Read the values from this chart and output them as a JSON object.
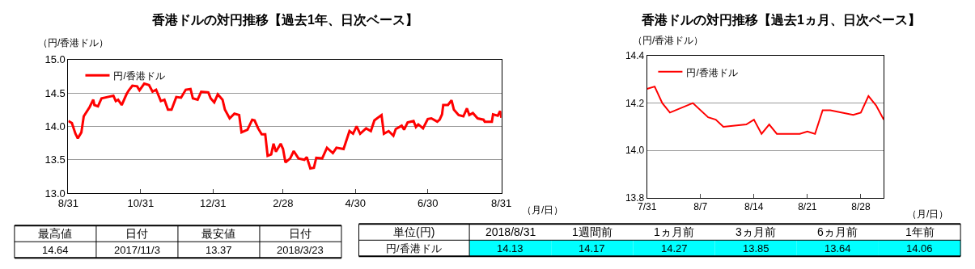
{
  "chart_data": [
    {
      "type": "line",
      "title": "香港ドルの対円推移【過去1年、日次ベース】",
      "ylabel": "（円/香港ドル）",
      "xlabel": "（月/日）",
      "legend": "top left",
      "grid": "y",
      "line_style": "solid",
      "xlim": [
        "2017-08-31",
        "2018-08-31"
      ],
      "xticks": [
        {
          "value": "2017-08-31",
          "label": "8/31"
        },
        {
          "value": "2017-10-31",
          "label": "10/31"
        },
        {
          "value": "2017-12-31",
          "label": "12/31"
        },
        {
          "value": "2018-02-28",
          "label": "2/28"
        },
        {
          "value": "2018-04-30",
          "label": "4/30"
        },
        {
          "value": "2018-06-30",
          "label": "6/30"
        },
        {
          "value": "2018-08-31",
          "label": "8/31"
        }
      ],
      "ylim": [
        13,
        15
      ],
      "yticks": [
        {
          "value": 13,
          "label": "13.0"
        },
        13.5,
        {
          "value": 14,
          "label": "14.0"
        },
        14.5,
        {
          "value": 15,
          "label": "15.0"
        }
      ],
      "x": [
        "2017-08-31",
        "2017-09-03",
        "2017-09-06",
        "2017-09-08",
        "2017-09-11",
        "2017-09-13",
        "2017-09-18",
        "2017-09-21",
        "2017-09-22",
        "2017-09-25",
        "2017-09-28",
        "2017-10-03",
        "2017-10-08",
        "2017-10-10",
        "2017-10-12",
        "2017-10-15",
        "2017-10-19",
        "2017-10-21",
        "2017-10-24",
        "2017-10-28",
        "2017-10-30",
        "2017-11-03",
        "2017-11-07",
        "2017-11-10",
        "2017-11-13",
        "2017-11-17",
        "2017-11-20",
        "2017-11-23",
        "2017-11-26",
        "2017-11-30",
        "2017-12-04",
        "2017-12-08",
        "2017-12-12",
        "2017-12-14",
        "2017-12-18",
        "2017-12-21",
        "2017-12-27",
        "2017-12-29",
        "2018-01-01",
        "2018-01-04",
        "2018-01-08",
        "2018-01-10",
        "2018-01-14",
        "2018-01-18",
        "2018-01-22",
        "2018-01-24",
        "2018-01-29",
        "2018-02-02",
        "2018-02-04",
        "2018-02-07",
        "2018-02-10",
        "2018-02-13",
        "2018-02-15",
        "2018-02-18",
        "2018-02-20",
        "2018-02-22",
        "2018-02-26",
        "2018-02-28",
        "2018-03-02",
        "2018-03-06",
        "2018-03-09",
        "2018-03-13",
        "2018-03-18",
        "2018-03-20",
        "2018-03-23",
        "2018-03-26",
        "2018-03-28",
        "2018-04-02",
        "2018-04-06",
        "2018-04-11",
        "2018-04-14",
        "2018-04-20",
        "2018-04-25",
        "2018-04-28",
        "2018-05-01",
        "2018-05-04",
        "2018-05-09",
        "2018-05-13",
        "2018-05-16",
        "2018-05-22",
        "2018-05-24",
        "2018-05-28",
        "2018-06-01",
        "2018-06-03",
        "2018-06-08",
        "2018-06-10",
        "2018-06-13",
        "2018-06-18",
        "2018-06-20",
        "2018-06-22",
        "2018-06-26",
        "2018-06-30",
        "2018-07-03",
        "2018-07-08",
        "2018-07-10",
        "2018-07-12",
        "2018-07-13",
        "2018-07-17",
        "2018-07-20",
        "2018-07-22",
        "2018-07-26",
        "2018-07-30",
        "2018-08-02",
        "2018-08-04",
        "2018-08-07",
        "2018-08-11",
        "2018-08-16",
        "2018-08-17",
        "2018-08-23",
        "2018-08-24",
        "2018-08-28",
        "2018-08-30",
        "2018-08-31"
      ],
      "series": [
        {
          "name": "円/香港ドル",
          "color": "#ff0000",
          "values": [
            14.08,
            14.05,
            13.89,
            13.82,
            13.91,
            14.15,
            14.29,
            14.4,
            14.32,
            14.3,
            14.42,
            14.44,
            14.46,
            14.38,
            14.4,
            14.32,
            14.48,
            14.54,
            14.61,
            14.6,
            14.54,
            14.64,
            14.62,
            14.52,
            14.55,
            14.38,
            14.4,
            14.25,
            14.25,
            14.44,
            14.43,
            14.55,
            14.56,
            14.42,
            14.4,
            14.52,
            14.51,
            14.42,
            14.36,
            14.48,
            14.4,
            14.25,
            14.12,
            14.19,
            14.17,
            13.91,
            13.95,
            14.1,
            14.09,
            13.97,
            13.88,
            13.88,
            13.56,
            13.58,
            13.74,
            13.62,
            13.74,
            13.66,
            13.46,
            13.52,
            13.63,
            13.52,
            13.5,
            13.54,
            13.37,
            13.38,
            13.53,
            13.52,
            13.68,
            13.6,
            13.68,
            13.66,
            13.93,
            13.89,
            14.0,
            13.89,
            13.97,
            13.93,
            14.09,
            14.17,
            13.89,
            13.93,
            13.86,
            13.96,
            14.01,
            13.95,
            14.06,
            14.08,
            13.99,
            14.03,
            13.97,
            14.11,
            14.12,
            14.07,
            14.1,
            14.18,
            14.32,
            14.32,
            14.39,
            14.25,
            14.17,
            14.15,
            14.27,
            14.17,
            14.2,
            14.12,
            14.1,
            14.07,
            14.07,
            14.18,
            14.16,
            14.23,
            14.13
          ]
        }
      ]
    },
    {
      "type": "line",
      "title": "香港ドルの対円推移【過去1ヵ月、日次ベース】",
      "ylabel": "（円/香港ドル）",
      "xlabel": "（月/日）",
      "legend": "top left",
      "grid": "y",
      "line_style": "solid",
      "xlim": [
        "2018-07-31",
        "2018-08-31"
      ],
      "xticks": [
        {
          "value": "2018-07-31",
          "label": "7/31"
        },
        {
          "value": "2018-08-07",
          "label": "8/7"
        },
        {
          "value": "2018-08-14",
          "label": "8/14"
        },
        {
          "value": "2018-08-21",
          "label": "8/21"
        },
        {
          "value": "2018-08-28",
          "label": "8/28"
        }
      ],
      "ylim": [
        13.8,
        14.4
      ],
      "yticks": [
        {
          "value": 13.8,
          "label": "13.8"
        },
        {
          "value": 14,
          "label": "14.0"
        },
        {
          "value": 14.2,
          "label": "14.2"
        },
        {
          "value": 14.4,
          "label": "14.4"
        }
      ],
      "x": [
        "2018-07-31",
        "2018-08-01",
        "2018-08-02",
        "2018-08-03",
        "2018-08-06",
        "2018-08-08",
        "2018-08-09",
        "2018-08-10",
        "2018-08-13",
        "2018-08-14",
        "2018-08-15",
        "2018-08-16",
        "2018-08-17",
        "2018-08-20",
        "2018-08-21",
        "2018-08-22",
        "2018-08-23",
        "2018-08-24",
        "2018-08-27",
        "2018-08-28",
        "2018-08-29",
        "2018-08-30",
        "2018-08-31"
      ],
      "series": [
        {
          "name": "円/香港ドル",
          "color": "#ff0000",
          "values": [
            14.26,
            14.27,
            14.2,
            14.16,
            14.2,
            14.14,
            14.13,
            14.1,
            14.11,
            14.13,
            14.07,
            14.11,
            14.07,
            14.07,
            14.08,
            14.07,
            14.17,
            14.17,
            14.15,
            14.16,
            14.23,
            14.19,
            14.13
          ]
        }
      ]
    },
    {
      "type": "other",
      "annotations": [
        "最高値",
        "日付",
        "最安値",
        "日付",
        "14.64",
        "2017/11/3",
        "13.37",
        "2018/3/23"
      ]
    },
    {
      "type": "other",
      "color": "#00ffff",
      "annotations": [
        "単位(円)",
        "2018/8/31",
        "1週間前",
        "1ヵ月前",
        "3ヵ月前",
        "6ヵ月前",
        "1年前",
        "円/香港ドル",
        "14.13",
        "14.17",
        "14.27",
        "13.85",
        "13.64",
        "14.06"
      ]
    }
  ]
}
